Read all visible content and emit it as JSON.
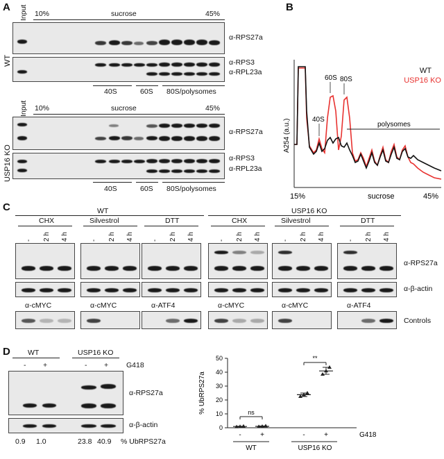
{
  "panels": {
    "A": "A",
    "B": "B",
    "C": "C",
    "D": "D"
  },
  "panelA": {
    "wt": {
      "genotype": "WT",
      "input": "Input",
      "pct_low": "10%",
      "sucrose": "sucrose",
      "pct_high": "45%",
      "top_marker": "α-RPS27a",
      "mid_marker1": "α-RPS3",
      "mid_marker2": "α-RPL23a",
      "fractions": [
        "40S",
        "60S",
        "80S/polysomes"
      ]
    },
    "ko": {
      "genotype": "USP16 KO",
      "input": "Input",
      "pct_low": "10%",
      "sucrose": "sucrose",
      "pct_high": "45%",
      "top_marker": "α-RPS27a",
      "mid_marker1": "α-RPS3",
      "mid_marker2": "α-RPL23a",
      "fractions": [
        "40S",
        "60S",
        "80S/polysomes"
      ]
    }
  },
  "panelB": {
    "legend_wt": "WT",
    "legend_ko": "USP16 KO",
    "ylabel": "A254 (a.u.)",
    "peak_40s": "40S",
    "peak_60s": "60S",
    "peak_80s": "80S",
    "polysomes": "polysomes",
    "x_low": "15%",
    "x_mid": "sucrose",
    "x_high": "45%",
    "colors": {
      "wt": "#111111",
      "ko": "#e8312f"
    }
  },
  "panelC": {
    "wt_title": "WT",
    "ko_title": "USP16 KO",
    "groups": [
      "CHX",
      "Silvestrol",
      "DTT"
    ],
    "timepoints": [
      "-",
      "2 h",
      "4 h"
    ],
    "marker_top": "α-RPS27a",
    "marker_mid": "α-β-actin",
    "marker_ctrl": "Controls",
    "ctrl_wt": [
      "α-cMYC",
      "α-cMYC",
      "α-ATF4"
    ],
    "ctrl_ko": [
      "α-cMYC",
      "α-cMYC",
      "α-ATF4"
    ]
  },
  "panelD": {
    "wt": "WT",
    "ko": "USP16 KO",
    "lanes": [
      "-",
      "+",
      "-",
      "+"
    ],
    "g418": "G418",
    "marker_top": "α-RPS27a",
    "marker_bottom": "α-β-actin",
    "ub_values": [
      "0.9",
      "1.0",
      "23.8",
      "40.9"
    ],
    "ub_label": "% UbRPS27a",
    "chart_data": {
      "type": "scatter",
      "ylabel": "% UbRPS27a",
      "ylim": [
        0,
        50
      ],
      "yticks": [
        "0",
        "10",
        "20",
        "30",
        "40",
        "50"
      ],
      "categories": [
        "-",
        "+",
        "-",
        "+"
      ],
      "groups": [
        "WT",
        "USP16 KO"
      ],
      "treatment_label": "G418",
      "points": [
        {
          "category": "-",
          "group": "WT",
          "values": [
            0.7,
            0.9,
            1.1
          ],
          "mean": 0.9
        },
        {
          "category": "+",
          "group": "WT",
          "values": [
            0.8,
            1.0,
            1.3
          ],
          "mean": 1.0
        },
        {
          "category": "-",
          "group": "USP16 KO",
          "values": [
            22.5,
            23.8,
            25.0
          ],
          "mean": 23.8
        },
        {
          "category": "+",
          "group": "USP16 KO",
          "values": [
            38.5,
            40.9,
            43.5
          ],
          "mean": 40.9
        }
      ],
      "significance": [
        {
          "between": [
            "WT -",
            "WT +"
          ],
          "label": "ns"
        },
        {
          "between": [
            "USP16 KO -",
            "USP16 KO +"
          ],
          "label": "**"
        }
      ]
    }
  }
}
